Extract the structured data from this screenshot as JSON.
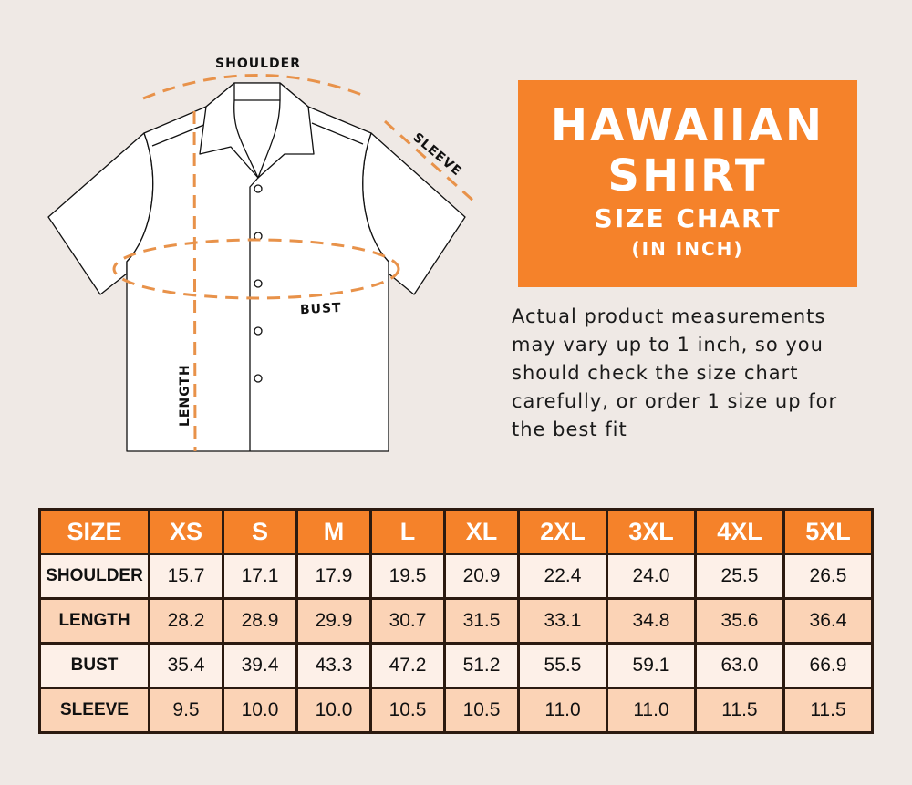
{
  "diagram": {
    "labels": {
      "shoulder": "SHOULDER",
      "sleeve": "SLEEVE",
      "bust": "BUST",
      "length": "LENGTH"
    },
    "colors": {
      "dash": "#e8924a",
      "outline": "#111111",
      "fill": "#ffffff"
    }
  },
  "title": {
    "line1": "HAWAIIAN",
    "line2": "SHIRT",
    "line3": "SIZE CHART",
    "line4": "(IN INCH)",
    "color": "#f5822a"
  },
  "note": "Actual product measurements may vary up to 1 inch, so you should check the size chart carefully, or order 1 size up for the best fit",
  "table": {
    "headers": [
      "SIZE",
      "XS",
      "S",
      "M",
      "L",
      "XL",
      "2XL",
      "3XL",
      "4XL",
      "5XL"
    ],
    "rows": [
      {
        "label": "SHOULDER",
        "values": [
          "15.7",
          "17.1",
          "17.9",
          "19.5",
          "20.9",
          "22.4",
          "24.0",
          "25.5",
          "26.5"
        ]
      },
      {
        "label": "LENGTH",
        "values": [
          "28.2",
          "28.9",
          "29.9",
          "30.7",
          "31.5",
          "33.1",
          "34.8",
          "35.6",
          "36.4"
        ]
      },
      {
        "label": "BUST",
        "values": [
          "35.4",
          "39.4",
          "43.3",
          "47.2",
          "51.2",
          "55.5",
          "59.1",
          "63.0",
          "66.9"
        ]
      },
      {
        "label": "SLEEVE",
        "values": [
          "9.5",
          "10.0",
          "10.0",
          "10.5",
          "10.5",
          "11.0",
          "11.0",
          "11.5",
          "11.5"
        ]
      }
    ]
  }
}
